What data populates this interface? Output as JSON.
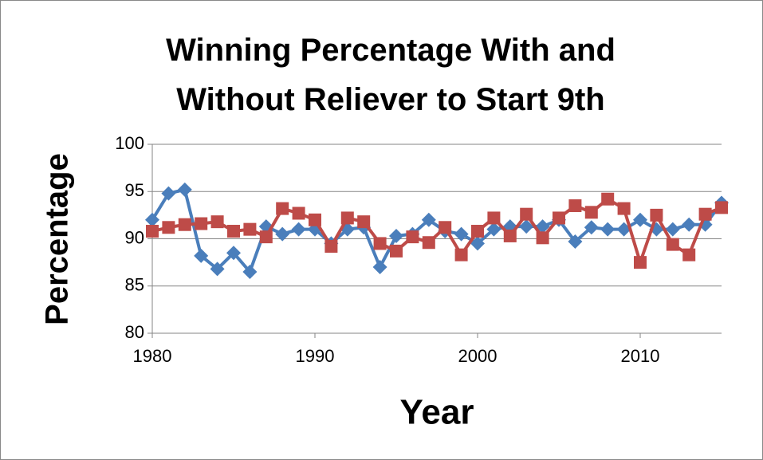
{
  "chart_data": {
    "type": "line",
    "title": "Winning Percentage With and Without Reliever to Start 9th",
    "xlabel": "Year",
    "ylabel": "Percentage",
    "x": [
      1980,
      1981,
      1982,
      1983,
      1984,
      1985,
      1986,
      1987,
      1988,
      1989,
      1990,
      1991,
      1992,
      1993,
      1994,
      1995,
      1996,
      1997,
      1998,
      1999,
      2000,
      2001,
      2002,
      2003,
      2004,
      2005,
      2006,
      2007,
      2008,
      2009,
      2010,
      2011,
      2012,
      2013,
      2014,
      2015
    ],
    "series": [
      {
        "color": "#4a7ebb",
        "marker": "diamond",
        "values": [
          92.0,
          94.8,
          95.2,
          88.2,
          86.8,
          88.5,
          86.5,
          91.3,
          90.5,
          91.0,
          91.0,
          89.5,
          91.0,
          91.2,
          87.0,
          90.3,
          90.5,
          92.0,
          90.8,
          90.5,
          89.5,
          91.0,
          91.3,
          91.3,
          91.3,
          92.0,
          89.7,
          91.2,
          91.0,
          91.0,
          92.0,
          91.0,
          91.0,
          91.5,
          91.5,
          93.8
        ]
      },
      {
        "color": "#be4b48",
        "marker": "square",
        "values": [
          90.8,
          91.2,
          91.5,
          91.6,
          91.8,
          90.8,
          91.0,
          90.2,
          93.2,
          92.7,
          92.0,
          89.2,
          92.2,
          91.8,
          89.5,
          88.7,
          90.2,
          89.6,
          91.2,
          88.3,
          90.8,
          92.2,
          90.3,
          92.6,
          90.1,
          92.2,
          93.5,
          92.8,
          94.2,
          93.2,
          87.5,
          92.5,
          89.4,
          88.3,
          92.6,
          93.3
        ]
      }
    ],
    "xlim": [
      1980,
      2015
    ],
    "xticks": [
      1980,
      1990,
      2000,
      2010
    ],
    "ylim": [
      80,
      100
    ],
    "yticks": [
      80,
      85,
      90,
      95,
      100
    ],
    "grid": true
  }
}
